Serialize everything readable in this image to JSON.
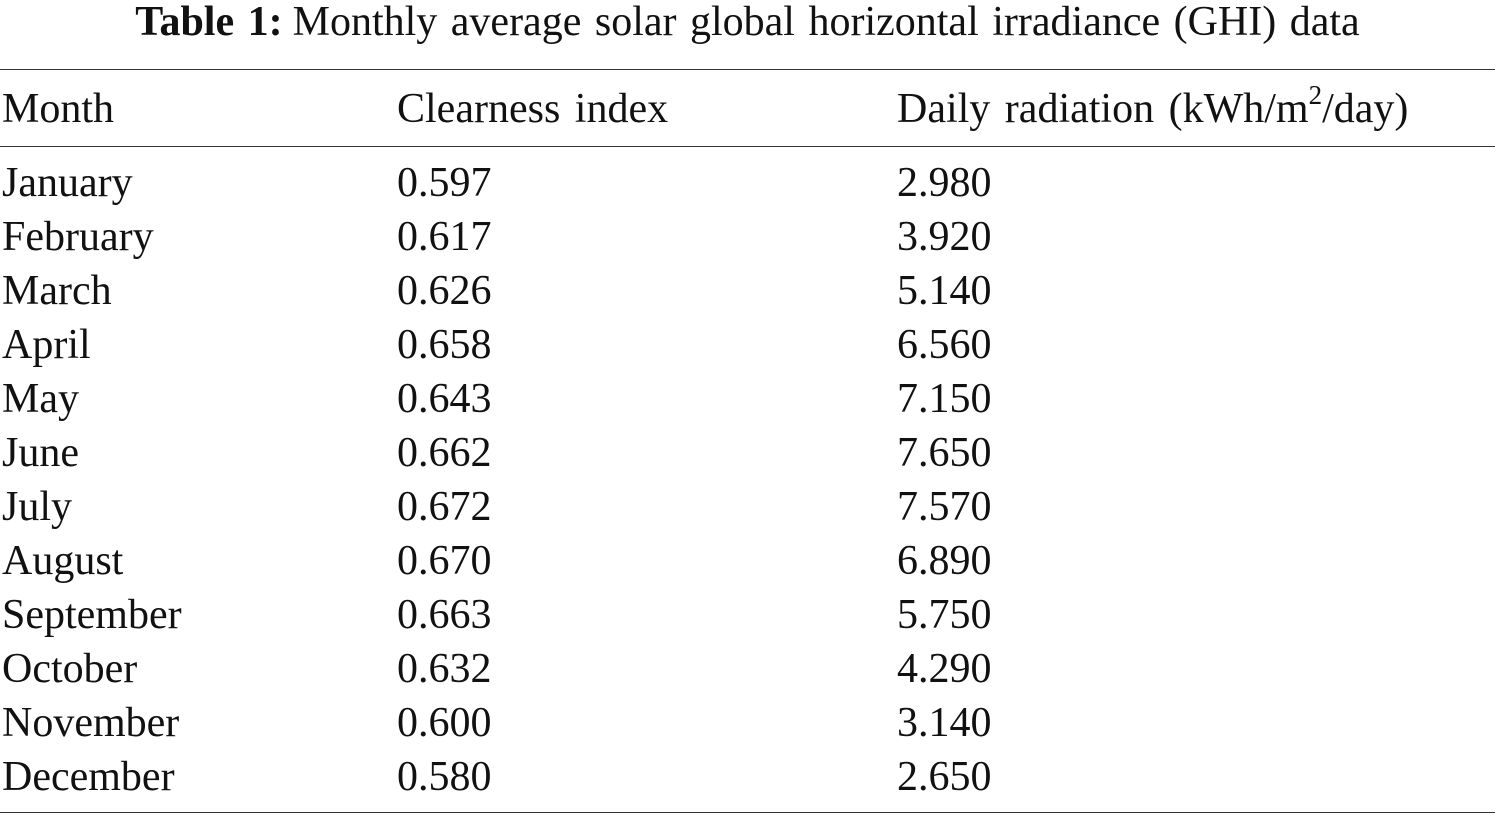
{
  "caption": {
    "label": "Table 1:",
    "text": "Monthly average solar global horizontal irradiance (GHI) data"
  },
  "table": {
    "headers": {
      "month": "Month",
      "clearness": "Clearness index",
      "radiation_prefix": "Daily radiation (kWh/m",
      "radiation_sup": "2",
      "radiation_suffix": "/day)"
    },
    "rows": [
      {
        "month": "January",
        "clearness": "0.597",
        "radiation": "2.980"
      },
      {
        "month": "February",
        "clearness": "0.617",
        "radiation": "3.920"
      },
      {
        "month": "March",
        "clearness": "0.626",
        "radiation": "5.140"
      },
      {
        "month": "April",
        "clearness": "0.658",
        "radiation": "6.560"
      },
      {
        "month": "May",
        "clearness": "0.643",
        "radiation": "7.150"
      },
      {
        "month": "June",
        "clearness": "0.662",
        "radiation": "7.650"
      },
      {
        "month": "July",
        "clearness": "0.672",
        "radiation": "7.570"
      },
      {
        "month": "August",
        "clearness": "0.670",
        "radiation": "6.890"
      },
      {
        "month": "September",
        "clearness": "0.663",
        "radiation": "5.750"
      },
      {
        "month": "October",
        "clearness": "0.632",
        "radiation": "4.290"
      },
      {
        "month": "November",
        "clearness": "0.600",
        "radiation": "3.140"
      },
      {
        "month": "December",
        "clearness": "0.580",
        "radiation": "2.650"
      }
    ]
  }
}
